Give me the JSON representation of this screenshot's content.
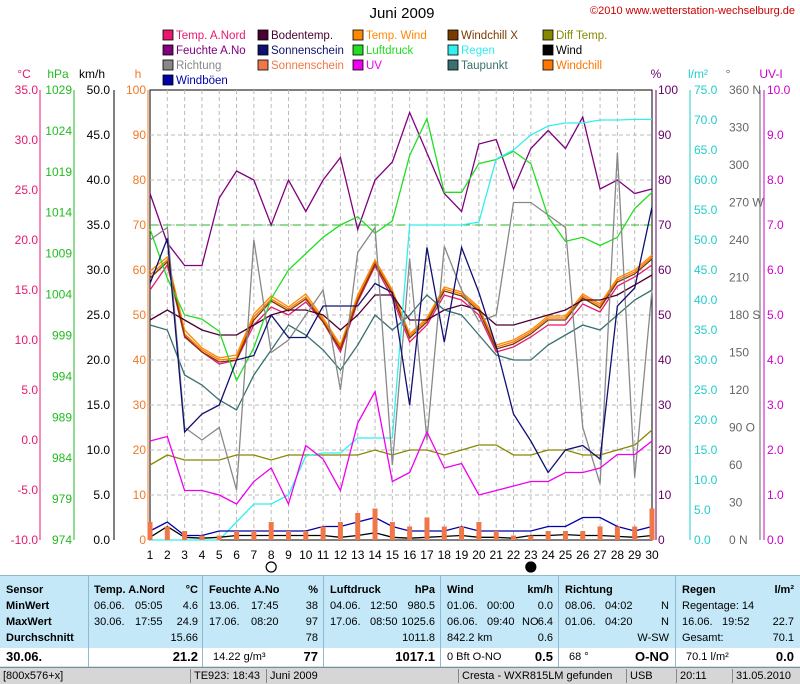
{
  "chart_data": {
    "type": "line",
    "title": "Juni 2009",
    "copyright": "©2010 www.wetterstation-wechselburg.de",
    "x": [
      1,
      2,
      3,
      4,
      5,
      6,
      7,
      8,
      9,
      10,
      11,
      12,
      13,
      14,
      15,
      16,
      17,
      18,
      19,
      20,
      21,
      22,
      23,
      24,
      25,
      26,
      27,
      28,
      29,
      30
    ],
    "axes": {
      "temp": {
        "unit": "°C",
        "ticks": [
          "35.0",
          "30.0",
          "25.0",
          "20.0",
          "15.0",
          "10.0",
          "5.0",
          "0.0",
          "-5.0",
          "-10.0"
        ],
        "color": "#e8186f",
        "range": [
          -10,
          35
        ]
      },
      "hpa": {
        "unit": "hPa",
        "ticks": [
          "1029",
          "1024",
          "1019",
          "1014",
          "1009",
          "1004",
          "999",
          "994",
          "989",
          "984",
          "979",
          "974"
        ],
        "color": "#22bb22",
        "range": [
          974,
          1029
        ]
      },
      "kmh": {
        "unit": "km/h",
        "ticks": [
          "50.0",
          "45.0",
          "40.0",
          "35.0",
          "30.0",
          "25.0",
          "20.0",
          "15.0",
          "10.0",
          "5.0",
          "0.0"
        ],
        "color": "#000000",
        "range": [
          0,
          50
        ]
      },
      "h": {
        "unit": "h",
        "ticks": [
          "100",
          "90",
          "80",
          "70",
          "60",
          "50",
          "40",
          "30",
          "20",
          "10",
          "0"
        ],
        "color": "#f07828",
        "range": [
          0,
          100
        ]
      },
      "pct": {
        "unit": "%",
        "ticks": [
          "100",
          "90",
          "80",
          "70",
          "60",
          "50",
          "40",
          "30",
          "20",
          "10",
          "0"
        ],
        "color": "#660066",
        "range": [
          0,
          100
        ]
      },
      "rain": {
        "unit": "l/m²",
        "ticks": [
          "75.0",
          "70.0",
          "65.0",
          "60.0",
          "55.0",
          "50.0",
          "45.0",
          "40.0",
          "35.0",
          "30.0",
          "25.0",
          "20.0",
          "15.0",
          "10.0",
          "5.0",
          "0.0"
        ],
        "color": "#22cccc",
        "range": [
          0,
          75
        ]
      },
      "dir": {
        "unit": "°",
        "ticks": [
          "360 N",
          "330",
          "300",
          "270 W",
          "240",
          "210",
          "180 S",
          "150",
          "120",
          "90  O",
          "60",
          "30",
          "0  N"
        ],
        "color": "#666666",
        "range": [
          0,
          360
        ]
      },
      "uv": {
        "unit": "UV-I",
        "ticks": [
          "10.0",
          "9.0",
          "8.0",
          "7.0",
          "6.0",
          "5.0",
          "4.0",
          "3.0",
          "2.0",
          "1.0",
          "0.0"
        ],
        "color": "#cc00cc",
        "range": [
          0,
          10
        ]
      }
    },
    "legend": [
      {
        "name": "Temp. A.Nord",
        "color": "#e8186f"
      },
      {
        "name": "Bodentemp.",
        "color": "#4a0030"
      },
      {
        "name": "Temp. Wind",
        "color": "#ff8800"
      },
      {
        "name": "Windchill X",
        "color": "#7a3a00"
      },
      {
        "name": "Diff Temp.",
        "color": "#888800"
      },
      {
        "name": "Feuchte A.No",
        "color": "#800080"
      },
      {
        "name": "Sonnenschein",
        "color": "#101070"
      },
      {
        "name": "Luftdruck",
        "color": "#22dd22"
      },
      {
        "name": "Regen",
        "color": "#33eeee"
      },
      {
        "name": "Wind",
        "color": "#000000"
      },
      {
        "name": "Richtung",
        "color": "#888888"
      },
      {
        "name": "Sonnenschein",
        "color": "#f07848"
      },
      {
        "name": "UV",
        "color": "#ee00ee"
      },
      {
        "name": "Taupunkt",
        "color": "#3a7070"
      },
      {
        "name": "Windchill",
        "color": "#ff7700"
      },
      {
        "name": "Windböen",
        "color": "#0000aa"
      }
    ],
    "series": [
      {
        "name": "Temp. A.Nord",
        "axis": "temp",
        "color": "#e8186f",
        "values": [
          15,
          17.5,
          10.3,
          8.8,
          7.6,
          8.0,
          11.5,
          13.3,
          12.5,
          13.8,
          11.8,
          8.8,
          13.8,
          17.4,
          14.2,
          9.8,
          11.5,
          14.5,
          14.0,
          12.5,
          8.8,
          9.3,
          10.3,
          11.5,
          11.5,
          13.6,
          12.8,
          15.4,
          16.3,
          17.5
        ]
      },
      {
        "name": "Temp. Wind",
        "axis": "temp",
        "color": "#ff8800",
        "values": [
          16.9,
          18.3,
          11.0,
          9.2,
          8.2,
          8.5,
          12.6,
          14.4,
          13.3,
          14.6,
          12.2,
          9.5,
          14.5,
          18.0,
          15.0,
          10.6,
          12.2,
          15.3,
          14.8,
          13.3,
          9.5,
          10.0,
          11.0,
          12.4,
          12.4,
          14.6,
          13.6,
          16.2,
          17.0,
          18.5
        ]
      },
      {
        "name": "Windchill",
        "axis": "temp",
        "color": "#ff7700",
        "values": [
          16.5,
          18.0,
          10.6,
          9.0,
          8.0,
          8.2,
          12.3,
          14.1,
          13.1,
          14.3,
          12.0,
          9.3,
          14.2,
          17.8,
          14.8,
          10.4,
          12.0,
          15.1,
          14.6,
          13.1,
          9.3,
          9.8,
          10.8,
          12.2,
          12.2,
          14.4,
          13.4,
          16.0,
          16.8,
          18.3
        ]
      },
      {
        "name": "Windchill X",
        "axis": "temp",
        "color": "#7a3a00",
        "values": [
          16.2,
          17.8,
          10.4,
          8.8,
          7.8,
          8.0,
          12.0,
          13.9,
          12.9,
          14.1,
          11.8,
          9.1,
          14.0,
          17.6,
          14.6,
          10.2,
          11.8,
          14.9,
          14.4,
          12.9,
          9.1,
          9.6,
          10.6,
          12.0,
          12.0,
          14.2,
          13.2,
          15.8,
          16.6,
          18.1
        ]
      },
      {
        "name": "Bodentemp.",
        "axis": "temp",
        "color": "#4a0030",
        "values": [
          12.0,
          13.0,
          12.0,
          11.0,
          10.5,
          10.5,
          11.5,
          12.5,
          13.0,
          13.0,
          12.5,
          11.0,
          12.5,
          14.5,
          14.5,
          12.0,
          12.0,
          13.0,
          13.5,
          13.0,
          11.5,
          11.5,
          12.0,
          12.5,
          13.0,
          14.0,
          14.0,
          14.5,
          15.5,
          16.5
        ]
      },
      {
        "name": "Taupunkt",
        "axis": "temp",
        "color": "#3a7070",
        "values": [
          11.5,
          11.0,
          6.5,
          5.5,
          4.0,
          3.0,
          6.5,
          9.0,
          11.5,
          10.5,
          9.0,
          7.0,
          9.5,
          12.5,
          11.0,
          12.5,
          14.5,
          13.0,
          12.5,
          10.5,
          8.5,
          8.0,
          8.0,
          9.5,
          10.5,
          11.5,
          11.0,
          12.5,
          14.0,
          15.0
        ]
      },
      {
        "name": "Diff Temp.",
        "axis": "temp",
        "color": "#888800",
        "values": [
          -2.5,
          -1.5,
          -2.0,
          -2.0,
          -2.0,
          -1.5,
          -1.5,
          -2.0,
          -1.5,
          -1.5,
          -1.5,
          -1.5,
          -1.5,
          -1.0,
          -1.5,
          -1.0,
          -1.0,
          -1.5,
          -1.0,
          -0.5,
          -0.5,
          -1.5,
          -1.5,
          -1.0,
          -1.0,
          -1.5,
          -1.5,
          -1.0,
          -0.5,
          1.0
        ]
      },
      {
        "name": "Feuchte A.No",
        "axis": "pct",
        "color": "#800080",
        "values": [
          77,
          66,
          61,
          61,
          76,
          82,
          80,
          70,
          80,
          73,
          80,
          85,
          69,
          80,
          84,
          95,
          86,
          77,
          73,
          88,
          89,
          78,
          87,
          91,
          87,
          94,
          78,
          80,
          77,
          78
        ]
      },
      {
        "name": "Luftdruck",
        "axis": "hpa",
        "color": "#22dd22",
        "values": [
          1012.0,
          1006.0,
          1001.5,
          1001.0,
          999.5,
          993.5,
          997.5,
          1003.5,
          1007.0,
          1009.0,
          1011.0,
          1012.5,
          1013.5,
          1011.5,
          1013.0,
          1021.0,
          1025.5,
          1016.5,
          1016.5,
          1020.0,
          1020.5,
          1021.5,
          1020.0,
          1013.5,
          1010.5,
          1011.0,
          1010.0,
          1011.0,
          1014.5,
          1016.5
        ]
      },
      {
        "name": "Regen",
        "axis": "rain",
        "color": "#33eeee",
        "values": [
          0,
          0,
          0,
          0,
          0,
          3.0,
          6.0,
          6.0,
          7.5,
          14.0,
          14.5,
          14.5,
          17.0,
          17.0,
          17.0,
          52.5,
          52.5,
          52.5,
          52.5,
          53.0,
          63.5,
          65.0,
          67.5,
          69.0,
          69.5,
          69.5,
          70.0,
          70.0,
          70.1,
          70.1
        ]
      },
      {
        "name": "Richtung",
        "axis": "dir",
        "color": "#888888",
        "values": [
          240,
          250,
          90,
          80,
          90,
          40,
          240,
          150,
          160,
          180,
          200,
          120,
          230,
          250,
          60,
          225,
          80,
          235,
          200,
          175,
          180,
          270,
          270,
          260,
          250,
          90,
          45,
          310,
          50,
          200
        ]
      },
      {
        "name": "UV",
        "axis": "uv",
        "color": "#ee00ee",
        "values": [
          2.2,
          2.3,
          1.1,
          1.1,
          1.0,
          0.8,
          1.3,
          1.6,
          0.8,
          2.1,
          1.8,
          1.1,
          2.6,
          3.3,
          1.3,
          1.5,
          2.4,
          1.6,
          1.7,
          1.0,
          1.1,
          1.2,
          1.3,
          1.3,
          1.5,
          1.5,
          1.6,
          1.9,
          1.9,
          2.2
        ]
      },
      {
        "name": "Sonnenschein",
        "axis": "h",
        "color": "#101070",
        "values": [
          57,
          67,
          24,
          28,
          30,
          40,
          41,
          50,
          45,
          45,
          52,
          52,
          52,
          57,
          55,
          30,
          65,
          44,
          65,
          55,
          43,
          28,
          22,
          15,
          20,
          21,
          18,
          52,
          56,
          74
        ]
      },
      {
        "name": "Windböen",
        "axis": "kmh",
        "color": "#0000aa",
        "values": [
          1.0,
          2.0,
          0.5,
          0.5,
          1.0,
          1.0,
          1.0,
          1.0,
          1.0,
          1.0,
          1.5,
          1.5,
          2.0,
          2.5,
          1.5,
          1.0,
          1.0,
          1.0,
          1.5,
          1.0,
          1.0,
          1.0,
          1.0,
          1.5,
          1.5,
          2.5,
          2.5,
          1.5,
          1.0,
          1.5
        ]
      },
      {
        "name": "Wind",
        "axis": "kmh",
        "color": "#000000",
        "values": [
          0.3,
          1.5,
          0.3,
          0.2,
          0.3,
          0.5,
          0.5,
          0.5,
          0.5,
          0.5,
          0.5,
          0.3,
          0.5,
          0.8,
          0.3,
          0.2,
          0.3,
          0.4,
          0.5,
          0.3,
          0.3,
          0.2,
          0.5,
          0.5,
          0.6,
          0.5,
          0.5,
          0.4,
          0.3,
          0.5
        ]
      },
      {
        "name": "Sonnenschein",
        "axis": "h",
        "type": "bar",
        "color": "#f07848",
        "values": [
          4,
          3,
          2,
          1,
          1,
          2,
          2,
          4,
          2,
          2,
          3,
          4,
          6,
          7,
          4,
          3,
          5,
          3,
          3,
          4,
          2,
          1,
          1,
          2,
          2,
          2,
          3,
          3,
          3,
          7
        ]
      }
    ]
  },
  "moon": {
    "full_day": 8,
    "new_day": 23
  },
  "stats": {
    "sensor": {
      "title": "Sensor",
      "min": "MinWert",
      "max": "MaxWert",
      "avg": "Durchschnitt",
      "date": "30.06."
    },
    "temp": {
      "title": "Temp. A.Nord",
      "unit": "°C",
      "min_date": "06.06.",
      "min_time": "05:05",
      "min_val": "4.6",
      "max_date": "30.06.",
      "max_time": "17:55",
      "max_val": "24.9",
      "avg": "15.66",
      "cur": "21.2"
    },
    "hum": {
      "title": "Feuchte A.No",
      "unit": "%",
      "min_date": "13.06.",
      "min_time": "17:45",
      "min_val": "38",
      "max_date": "17.06.",
      "max_time": "08:20",
      "max_val": "97",
      "avg": "78",
      "abs": "14.22 g/m³",
      "cur": "77"
    },
    "press": {
      "title": "Luftdruck",
      "unit": "hPa",
      "min_date": "04.06.",
      "min_time": "12:50",
      "min_val": "980.5",
      "max_date": "17.06.",
      "max_time": "08:50",
      "max_val": "1025.6",
      "avg": "1011.8",
      "cur": "1017.1"
    },
    "wind": {
      "title": "Wind",
      "unit": "km/h",
      "min_date": "01.06.",
      "min_time": "00:00",
      "min_val": "0.0",
      "max_date": "06.06.",
      "max_time": "09:40",
      "max_dir": "NO",
      "max_val": "6.4",
      "dist": "842.2 km",
      "avg": "0.6",
      "bft": "0 Bft O-NO",
      "cur": "0.5"
    },
    "dir": {
      "title": "Richtung",
      "min_date": "08.06.",
      "min_time": "04:02",
      "min_val": "N",
      "max_date": "01.06.",
      "max_time": "04:20",
      "max_val": "N",
      "avg": "W-SW",
      "deg": "68 °",
      "cur": "O-NO"
    },
    "rain": {
      "title": "Regen",
      "unit": "l/m²",
      "days_label": "Regentage: 14",
      "max_date": "16.06.",
      "max_time": "19:52",
      "max_val": "22.7",
      "total_label": "Gesamt:",
      "total_val": "70.1",
      "cur_label": "70.1 l/m²",
      "cur": "0.0"
    }
  },
  "statusbar": [
    "[800x576+x]",
    "TE923: 18:43",
    "Juni 2009",
    "Cresta - WXR815LM gefunden",
    "USB",
    "20:11",
    "31.05.2010"
  ]
}
